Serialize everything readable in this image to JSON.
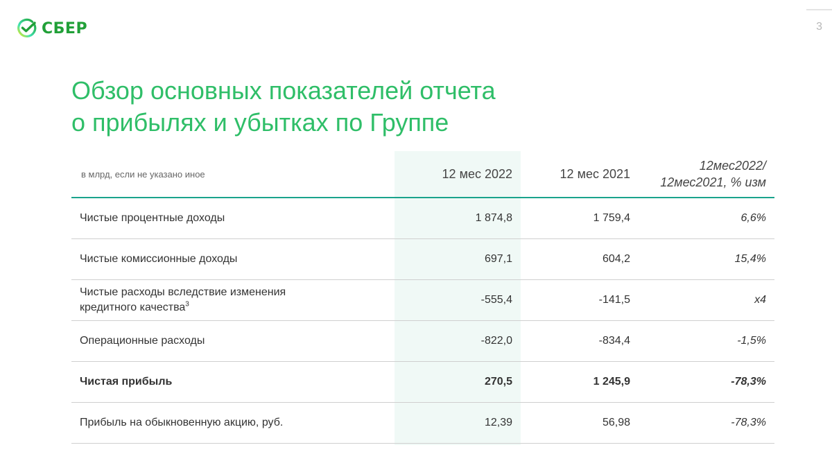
{
  "brand": {
    "name": "СБЕР",
    "color": "#21a038",
    "logo_icon": "sber-check-icon"
  },
  "page_number": "3",
  "title": {
    "line1": "Обзор основных показателей отчета",
    "line2": "о прибылях и убытках по Группе",
    "color": "#2fbe68"
  },
  "table": {
    "header": {
      "units": "в млрд, если не указано иное",
      "col_2022": "12 мес 2022",
      "col_2021": "12 мес 2021",
      "col_change_line1": "12мес2022/",
      "col_change_line2": "12мес2021, % изм"
    },
    "rows": [
      {
        "label": "Чистые процентные доходы",
        "y2022": "1 874,8",
        "y2021": "1 759,4",
        "change": "6,6%"
      },
      {
        "label": "Чистые комиссионные доходы",
        "y2022": "697,1",
        "y2021": "604,2",
        "change": "15,4%"
      },
      {
        "label_line1": "Чистые расходы вследствие изменения",
        "label_line2": "кредитного качества",
        "footnote": "3",
        "y2022": "-555,4",
        "y2021": "-141,5",
        "change": "x4"
      },
      {
        "label": "Операционные расходы",
        "y2022": "-822,0",
        "y2021": "-834,4",
        "change": "-1,5%"
      },
      {
        "label": "Чистая прибыль",
        "y2022": "270,5",
        "y2021": "1 245,9",
        "change": "-78,3%",
        "bold": true
      },
      {
        "label": "Прибыль на обыкновенную акцию, руб.",
        "y2022": "12,39",
        "y2021": "56,98",
        "change": "-78,3%"
      }
    ],
    "highlight_color": "#f0f9f6",
    "accent_line_color": "#1aa38c"
  }
}
